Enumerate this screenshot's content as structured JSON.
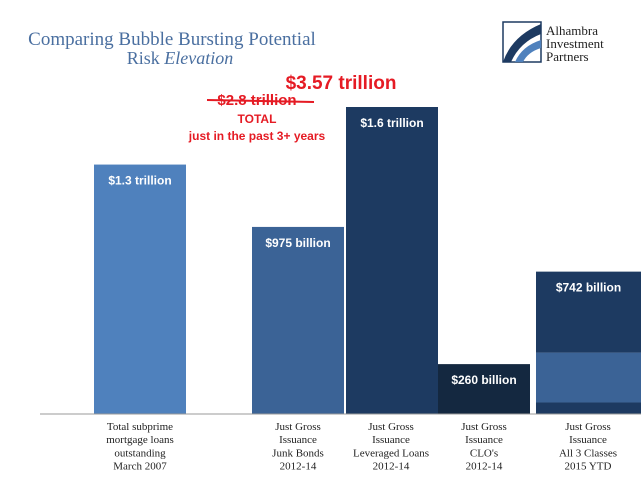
{
  "chart_data": {
    "type": "bar",
    "title": "Comparing Bubble Bursting Potential",
    "subtitle_prefix": "Risk ",
    "subtitle_emphasis": "Elevation",
    "unit": "billion USD",
    "ylim": [
      0,
      1600
    ],
    "grid": false,
    "bars": [
      {
        "label_lines": [
          "Total subprime",
          "mortgage loans",
          "outstanding",
          "March 2007"
        ],
        "value": 1300,
        "value_label": "$1.3 trillion",
        "color": "#4f81bd"
      },
      {
        "label_lines": [
          "Just Gross",
          "Issuance",
          "Junk Bonds",
          "2012-14"
        ],
        "value": 975,
        "value_label": "$975 billion",
        "color": "#3b6396"
      },
      {
        "label_lines": [
          "Just Gross",
          "Issuance",
          "Leveraged  Loans",
          "2012-14"
        ],
        "value": 1600,
        "value_label": "$1.6 trillion",
        "color": "#1d3a61"
      },
      {
        "label_lines": [
          "Just Gross",
          "Issuance",
          "CLO's",
          "2012-14"
        ],
        "value": 260,
        "value_label": "$260 billion",
        "color": "#142840"
      },
      {
        "label_lines": [
          "Just Gross",
          "Issuance",
          "All 3 Classes",
          "2015 YTD"
        ],
        "value": 742,
        "value_label": "$742 billion",
        "color": "#1d3a61",
        "stack": [
          {
            "value": 60,
            "color": "#1d3a61"
          },
          {
            "value": 260,
            "color": "#3b6396"
          },
          {
            "value": 422,
            "color": "#1d3a61"
          }
        ]
      }
    ],
    "annotations": {
      "total_new": "$3.57 trillion",
      "total_old_struck": "$2.8 trillion",
      "total_caption_1": "TOTAL",
      "total_caption_2": "just in the past 3+ years",
      "accent_color": "#e51b24"
    }
  },
  "logo": {
    "line1": "Alhambra",
    "line2": "Investment",
    "line3": "Partners"
  }
}
